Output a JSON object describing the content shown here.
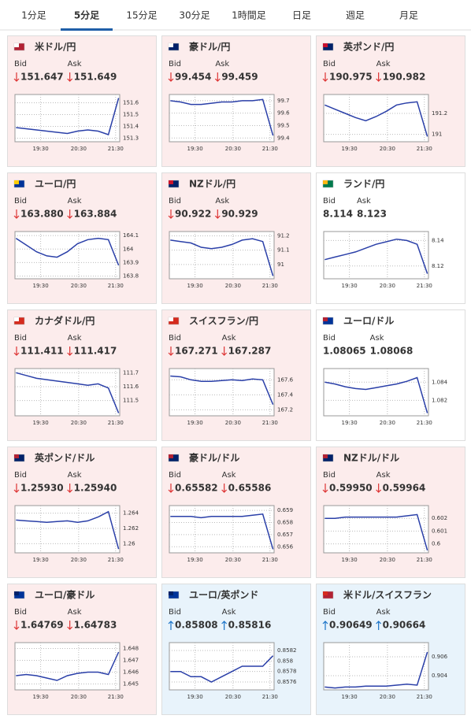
{
  "tabs": {
    "items": [
      "1分足",
      "5分足",
      "15分足",
      "30分足",
      "1時間足",
      "日足",
      "週足",
      "月足"
    ],
    "active": 1
  },
  "cards": [
    {
      "title": "米ドル/円",
      "bid_label": "Bid",
      "ask_label": "Ask",
      "bid": "151.647",
      "ask": "151.649",
      "trend": "down",
      "bg": "#fcecec",
      "title_color": "#5e2a84",
      "flag": [
        "#b22234",
        "#ffffff"
      ],
      "chart": {
        "type": "line",
        "color": "#2a3fa8",
        "ylim": [
          151.27,
          151.67
        ],
        "yticks": [
          151.3,
          151.4,
          151.5,
          151.6
        ],
        "xlim": [
          0,
          10.2
        ],
        "xticks": [
          {
            "value": 2.5,
            "label": "19:30"
          },
          {
            "value": 6.2,
            "label": "20:30"
          },
          {
            "value": 9.8,
            "label": "21:30"
          }
        ],
        "values": [
          151.39,
          151.38,
          151.37,
          151.36,
          151.35,
          151.34,
          151.36,
          151.37,
          151.36,
          151.33,
          151.64
        ]
      }
    },
    {
      "title": "豪ドル/円",
      "bid_label": "Bid",
      "ask_label": "Ask",
      "bid": "99.454",
      "ask": "99.459",
      "trend": "down",
      "bg": "#fcecec",
      "title_color": "#5e2a84",
      "flag": [
        "#012169",
        "#ffffff"
      ],
      "chart": {
        "type": "line",
        "color": "#2a3fa8",
        "ylim": [
          99.37,
          99.75
        ],
        "yticks": [
          99.4,
          99.5,
          99.6,
          99.7
        ],
        "xlim": [
          0,
          10.2
        ],
        "xticks": [
          {
            "value": 2.5,
            "label": "19:30"
          },
          {
            "value": 6.2,
            "label": "20:30"
          },
          {
            "value": 9.8,
            "label": "21:30"
          }
        ],
        "values": [
          99.7,
          99.69,
          99.67,
          99.67,
          99.68,
          99.69,
          99.69,
          99.7,
          99.7,
          99.71,
          99.42
        ]
      }
    },
    {
      "title": "英ポンド/円",
      "bid_label": "Bid",
      "ask_label": "Ask",
      "bid": "190.975",
      "ask": "190.982",
      "trend": "down",
      "bg": "#fcecec",
      "title_color": "#5e2a84",
      "flag": [
        "#012169",
        "#c8102e"
      ],
      "chart": {
        "type": "line",
        "color": "#2a3fa8",
        "ylim": [
          190.93,
          191.38
        ],
        "yticks": [
          191,
          191.2
        ],
        "xlim": [
          0,
          10.2
        ],
        "xticks": [
          {
            "value": 2.5,
            "label": "19:30"
          },
          {
            "value": 6.2,
            "label": "20:30"
          },
          {
            "value": 9.8,
            "label": "21:30"
          }
        ],
        "values": [
          191.28,
          191.24,
          191.2,
          191.16,
          191.13,
          191.17,
          191.22,
          191.28,
          191.3,
          191.31,
          190.98
        ]
      }
    },
    {
      "title": "ユーロ/円",
      "bid_label": "Bid",
      "ask_label": "Ask",
      "bid": "163.880",
      "ask": "163.884",
      "trend": "down",
      "bg": "#fcecec",
      "title_color": "#5e2a84",
      "flag": [
        "#003399",
        "#ffcc00"
      ],
      "chart": {
        "type": "line",
        "color": "#2a3fa8",
        "ylim": [
          163.78,
          164.13
        ],
        "yticks": [
          163.8,
          163.9,
          164,
          164.1
        ],
        "xlim": [
          0,
          10.2
        ],
        "xticks": [
          {
            "value": 2.5,
            "label": "19:30"
          },
          {
            "value": 6.2,
            "label": "20:30"
          },
          {
            "value": 9.8,
            "label": "21:30"
          }
        ],
        "values": [
          164.08,
          164.03,
          163.98,
          163.95,
          163.94,
          163.98,
          164.04,
          164.07,
          164.08,
          164.07,
          163.88
        ]
      }
    },
    {
      "title": "NZドル/円",
      "bid_label": "Bid",
      "ask_label": "Ask",
      "bid": "90.922",
      "ask": "90.929",
      "trend": "down",
      "bg": "#fcecec",
      "title_color": "#5e2a84",
      "flag": [
        "#012169",
        "#cc142b"
      ],
      "chart": {
        "type": "line",
        "color": "#2a3fa8",
        "ylim": [
          90.9,
          91.23
        ],
        "yticks": [
          91,
          91.1,
          91.2
        ],
        "xlim": [
          0,
          10.2
        ],
        "xticks": [
          {
            "value": 2.5,
            "label": "19:30"
          },
          {
            "value": 6.2,
            "label": "20:30"
          },
          {
            "value": 9.8,
            "label": "21:30"
          }
        ],
        "values": [
          91.17,
          91.16,
          91.15,
          91.12,
          91.11,
          91.12,
          91.14,
          91.17,
          91.18,
          91.16,
          90.92
        ]
      }
    },
    {
      "title": "ランド/円",
      "bid_label": "Bid",
      "ask_label": "Ask",
      "bid": "8.114",
      "ask": "8.123",
      "trend": "none",
      "bg": "#ffffff",
      "title_color": "#5e2a84",
      "flag": [
        "#007a4d",
        "#ffb612"
      ],
      "chart": {
        "type": "line",
        "color": "#2a3fa8",
        "ylim": [
          8.11,
          8.147
        ],
        "yticks": [
          8.12,
          8.14
        ],
        "xlim": [
          0,
          10.2
        ],
        "xticks": [
          {
            "value": 2.5,
            "label": "19:30"
          },
          {
            "value": 6.2,
            "label": "20:30"
          },
          {
            "value": 9.8,
            "label": "21:30"
          }
        ],
        "values": [
          8.125,
          8.127,
          8.129,
          8.131,
          8.134,
          8.137,
          8.139,
          8.141,
          8.14,
          8.137,
          8.114
        ]
      }
    },
    {
      "title": "カナダドル/円",
      "bid_label": "Bid",
      "ask_label": "Ask",
      "bid": "111.411",
      "ask": "111.417",
      "trend": "down",
      "bg": "#fcecec",
      "title_color": "#5e2a84",
      "flag": [
        "#d52b1e",
        "#ffffff"
      ],
      "chart": {
        "type": "line",
        "color": "#2a3fa8",
        "ylim": [
          111.39,
          111.73
        ],
        "yticks": [
          111.5,
          111.6,
          111.7
        ],
        "xlim": [
          0,
          10.2
        ],
        "xticks": [
          {
            "value": 2.5,
            "label": "19:30"
          },
          {
            "value": 6.2,
            "label": "20:30"
          },
          {
            "value": 9.8,
            "label": "21:30"
          }
        ],
        "values": [
          111.7,
          111.68,
          111.66,
          111.65,
          111.64,
          111.63,
          111.62,
          111.61,
          111.62,
          111.59,
          111.41
        ]
      }
    },
    {
      "title": "スイスフラン/円",
      "bid_label": "Bid",
      "ask_label": "Ask",
      "bid": "167.271",
      "ask": "167.287",
      "trend": "down",
      "bg": "#fcecec",
      "title_color": "#5e2a84",
      "flag": [
        "#d52b1e",
        "#ffffff"
      ],
      "chart": {
        "type": "line",
        "color": "#2a3fa8",
        "ylim": [
          167.12,
          167.75
        ],
        "yticks": [
          167.2,
          167.4,
          167.6
        ],
        "xlim": [
          0,
          10.2
        ],
        "xticks": [
          {
            "value": 2.5,
            "label": "19:30"
          },
          {
            "value": 6.2,
            "label": "20:30"
          },
          {
            "value": 9.8,
            "label": "21:30"
          }
        ],
        "values": [
          167.65,
          167.64,
          167.6,
          167.58,
          167.58,
          167.59,
          167.6,
          167.59,
          167.61,
          167.6,
          167.27
        ]
      }
    },
    {
      "title": "ユーロ/ドル",
      "bid_label": "Bid",
      "ask_label": "Ask",
      "bid": "1.08065",
      "ask": "1.08068",
      "trend": "none",
      "bg": "#ffffff",
      "title_color": "#1f5fa8",
      "flag": [
        "#003399",
        "#b22234"
      ],
      "chart": {
        "type": "line",
        "color": "#2a3fa8",
        "ylim": [
          1.0803,
          1.0855
        ],
        "yticks": [
          1.082,
          1.084
        ],
        "xlim": [
          0,
          10.2
        ],
        "xticks": [
          {
            "value": 2.5,
            "label": "19:30"
          },
          {
            "value": 6.2,
            "label": "20:30"
          },
          {
            "value": 9.8,
            "label": "21:30"
          }
        ],
        "values": [
          1.084,
          1.0838,
          1.0835,
          1.0833,
          1.0832,
          1.0834,
          1.0836,
          1.0838,
          1.0841,
          1.0845,
          1.0806
        ]
      }
    },
    {
      "title": "英ポンド/ドル",
      "bid_label": "Bid",
      "ask_label": "Ask",
      "bid": "1.25930",
      "ask": "1.25940",
      "trend": "down",
      "bg": "#fcecec",
      "title_color": "#1f5fa8",
      "flag": [
        "#012169",
        "#b22234"
      ],
      "chart": {
        "type": "line",
        "color": "#2a3fa8",
        "ylim": [
          1.2588,
          1.265
        ],
        "yticks": [
          1.26,
          1.262,
          1.264
        ],
        "xlim": [
          0,
          10.2
        ],
        "xticks": [
          {
            "value": 2.5,
            "label": "19:30"
          },
          {
            "value": 6.2,
            "label": "20:30"
          },
          {
            "value": 9.8,
            "label": "21:30"
          }
        ],
        "values": [
          1.2631,
          1.263,
          1.2629,
          1.2628,
          1.2629,
          1.263,
          1.2628,
          1.263,
          1.2635,
          1.2642,
          1.2593
        ]
      }
    },
    {
      "title": "豪ドル/ドル",
      "bid_label": "Bid",
      "ask_label": "Ask",
      "bid": "0.65582",
      "ask": "0.65586",
      "trend": "down",
      "bg": "#fcecec",
      "title_color": "#1f5fa8",
      "flag": [
        "#012169",
        "#b22234"
      ],
      "chart": {
        "type": "line",
        "color": "#2a3fa8",
        "ylim": [
          0.6555,
          0.6594
        ],
        "yticks": [
          0.656,
          0.657,
          0.658,
          0.659
        ],
        "xlim": [
          0,
          10.2
        ],
        "xticks": [
          {
            "value": 2.5,
            "label": "19:30"
          },
          {
            "value": 6.2,
            "label": "20:30"
          },
          {
            "value": 9.8,
            "label": "21:30"
          }
        ],
        "values": [
          0.6585,
          0.6585,
          0.6585,
          0.6584,
          0.6585,
          0.6585,
          0.6585,
          0.6585,
          0.6586,
          0.6587,
          0.6558
        ]
      }
    },
    {
      "title": "NZドル/ドル",
      "bid_label": "Bid",
      "ask_label": "Ask",
      "bid": "0.59950",
      "ask": "0.59964",
      "trend": "down",
      "bg": "#fcecec",
      "title_color": "#1f5fa8",
      "flag": [
        "#012169",
        "#b22234"
      ],
      "chart": {
        "type": "line",
        "color": "#2a3fa8",
        "ylim": [
          0.5993,
          0.603
        ],
        "yticks": [
          0.6,
          0.601,
          0.602
        ],
        "xlim": [
          0,
          10.2
        ],
        "xticks": [
          {
            "value": 2.5,
            "label": "19:30"
          },
          {
            "value": 6.2,
            "label": "20:30"
          },
          {
            "value": 9.8,
            "label": "21:30"
          }
        ],
        "values": [
          0.602,
          0.602,
          0.6021,
          0.6021,
          0.6021,
          0.6021,
          0.6021,
          0.6021,
          0.6022,
          0.6023,
          0.5995
        ]
      }
    },
    {
      "title": "ユーロ/豪ドル",
      "bid_label": "Bid",
      "ask_label": "Ask",
      "bid": "1.64769",
      "ask": "1.64783",
      "trend": "down",
      "bg": "#fcecec",
      "title_color": "#1f5fa8",
      "flag": [
        "#003399",
        "#012169"
      ],
      "chart": {
        "type": "line",
        "color": "#2a3fa8",
        "ylim": [
          1.6445,
          1.6485
        ],
        "yticks": [
          1.645,
          1.646,
          1.647,
          1.648
        ],
        "xlim": [
          0,
          10.2
        ],
        "xticks": [
          {
            "value": 2.5,
            "label": "19:30"
          },
          {
            "value": 6.2,
            "label": "20:30"
          },
          {
            "value": 9.8,
            "label": "21:30"
          }
        ],
        "values": [
          1.6457,
          1.6458,
          1.6457,
          1.6455,
          1.6453,
          1.6457,
          1.6459,
          1.646,
          1.646,
          1.6458,
          1.6477
        ]
      }
    },
    {
      "title": "ユーロ/英ポンド",
      "bid_label": "Bid",
      "ask_label": "Ask",
      "bid": "0.85808",
      "ask": "0.85816",
      "trend": "up",
      "bg": "#e8f3fb",
      "title_color": "#1f5fa8",
      "flag": [
        "#003399",
        "#012169"
      ],
      "chart": {
        "type": "line",
        "color": "#2a3fa8",
        "ylim": [
          0.85745,
          0.85835
        ],
        "yticks": [
          0.8576,
          0.8578,
          0.858,
          0.8582
        ],
        "xlim": [
          0,
          10.2
        ],
        "xticks": [
          {
            "value": 2.5,
            "label": "19:30"
          },
          {
            "value": 6.2,
            "label": "20:30"
          },
          {
            "value": 9.8,
            "label": "21:30"
          }
        ],
        "values": [
          0.8578,
          0.8578,
          0.8577,
          0.8577,
          0.8576,
          0.8577,
          0.8578,
          0.8579,
          0.8579,
          0.8579,
          0.8581
        ]
      }
    },
    {
      "title": "米ドル/スイスフラン",
      "bid_label": "Bid",
      "ask_label": "Ask",
      "bid": "0.90649",
      "ask": "0.90664",
      "trend": "up",
      "bg": "#e8f3fb",
      "title_color": "#1f5fa8",
      "flag": [
        "#b22234",
        "#d52b1e"
      ],
      "chart": {
        "type": "line",
        "color": "#2a3fa8",
        "ylim": [
          0.9025,
          0.9075
        ],
        "yticks": [
          0.904,
          0.906
        ],
        "xlim": [
          0,
          10.2
        ],
        "xticks": [
          {
            "value": 2.5,
            "label": "19:30"
          },
          {
            "value": 6.2,
            "label": "20:30"
          },
          {
            "value": 9.8,
            "label": "21:30"
          }
        ],
        "values": [
          0.9028,
          0.9027,
          0.9028,
          0.9028,
          0.9029,
          0.9029,
          0.9029,
          0.903,
          0.9031,
          0.903,
          0.9065
        ]
      }
    }
  ]
}
